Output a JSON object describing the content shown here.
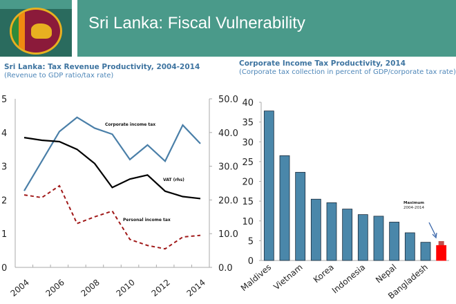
{
  "header": {
    "title": "Sri Lanka: Fiscal Vulnerability",
    "flag_icon": "sri-lanka-flag-icon"
  },
  "colors": {
    "banner": "#4a9a8a",
    "flagbox": "#2a6b5e",
    "cit": "#4a7fa8",
    "vat": "#000000",
    "pit": "#a01818",
    "bar": "#4a87aa",
    "highlight": "#ff0000",
    "max": "#c0504d"
  },
  "chart_data": [
    {
      "type": "line",
      "title": "Sri Lanka: Tax Revenue Productivity, 2004-2014",
      "subtitle": "(Revenue to GDP ratio/tax rate)",
      "x": [
        2004,
        2005,
        2006,
        2007,
        2008,
        2009,
        2010,
        2011,
        2012,
        2013,
        2014
      ],
      "xticks": [
        "2004",
        "2006",
        "2008",
        "2010",
        "2012",
        "2014"
      ],
      "ylim": [
        0,
        5
      ],
      "yticks": [
        "0",
        "1",
        "2",
        "3",
        "4",
        "5"
      ],
      "y2lim": [
        0,
        50
      ],
      "y2ticks": [
        "0.0",
        "10.0",
        "20.0",
        "30.0",
        "40.0",
        "50.0"
      ],
      "grid": false,
      "series": [
        {
          "name": "Corporate income tax",
          "axis": "left",
          "style": "solid",
          "values": [
            2.27,
            3.15,
            4.03,
            4.45,
            4.13,
            3.95,
            3.2,
            3.63,
            3.15,
            4.22,
            3.67
          ]
        },
        {
          "name": "VAT (rhs)",
          "axis": "right",
          "style": "solid",
          "values": [
            38.5,
            37.7,
            37.3,
            35.0,
            30.8,
            23.7,
            26.2,
            27.4,
            22.6,
            21.0,
            20.4
          ]
        },
        {
          "name": "Personal income tax",
          "axis": "left",
          "style": "dashed",
          "values": [
            2.15,
            2.07,
            2.42,
            1.3,
            1.5,
            1.67,
            0.83,
            0.65,
            0.55,
            0.9,
            0.95
          ]
        }
      ]
    },
    {
      "type": "bar",
      "title": "Corporate Income Tax Productivity, 2014",
      "subtitle": "(Corporate tax collection in percent of GDP/corporate tax rate)",
      "categories": [
        "Maldives",
        "",
        "Vietnam",
        "",
        "Korea",
        "",
        "Indonesia",
        "",
        "Nepal",
        "",
        "Bangladesh",
        ""
      ],
      "values": [
        37.8,
        26.5,
        22.3,
        15.5,
        14.6,
        13.0,
        11.6,
        11.2,
        9.7,
        7.0,
        4.6,
        3.8
      ],
      "highlight_index": 11,
      "highlight_max": 4.9,
      "annotation": "Maximum 2004-2014",
      "annotation_lines": [
        "Maximum",
        "2004-2014"
      ],
      "ylim": [
        0,
        40
      ],
      "yticks": [
        "0",
        "5",
        "10",
        "15",
        "20",
        "25",
        "30",
        "35",
        "40"
      ],
      "grid": false
    }
  ]
}
